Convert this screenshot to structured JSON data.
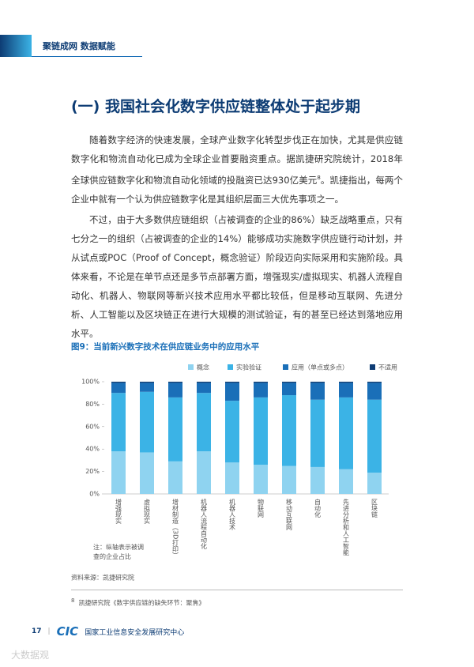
{
  "header": {
    "title": "聚链成网 数据赋能"
  },
  "section_title": "(一) 我国社会化数字供应链整体处于起步期",
  "paragraphs": [
    {
      "before": "随着数字经济的快速发展，全球产业数字化转型步伐正在加快，尤其是供应链数字化和物流自动化已成为全球企业首要融资重点。据凯捷研究院统计，2018年全球供应链数字化和物流自动化领域的投融资已达930亿美元",
      "ref": "8",
      "after": "。凯捷指出，每两个企业中就有一个认为供应链数字化是其组织层面三大优先事项之一。"
    },
    {
      "before": "不过，由于大多数供应链组织（占被调查的企业的86%）缺乏战略重点，只有七分之一的组织（占被调查的企业的14%）能够成功实施数字供应链行动计划，并从试点或POC（Proof of Concept，概念验证）阶段迈向实际采用和实施阶段。具体来看，不论是在单节点还是多节点部署方面，增强现实/虚拟现实、机器人流程自动化、机器人、物联网等新兴技术应用水平都比较低，但是移动互联网、先进分析、人工智能以及区块链正在进行大规模的测试验证，有的甚至已经达到落地应用水平。"
    }
  ],
  "chart_data": {
    "type": "stacked_bar",
    "title": "图9：当前新兴数字技术在供应链业务中的应用水平",
    "categories": [
      "增强现实",
      "虚拟现实",
      "增材制造（3D打印）",
      "机器人流程自动化",
      "机器人技术",
      "物联网",
      "移动互联网",
      "自动化",
      "先进分析和人工智能",
      "区块链"
    ],
    "series": [
      {
        "name": "概念",
        "color": "#8fd3f0",
        "values": [
          38,
          37,
          29,
          38,
          28,
          26,
          25,
          24,
          22,
          19
        ]
      },
      {
        "name": "实验验证",
        "color": "#3bb3e6",
        "values": [
          52,
          54,
          57,
          52,
          55,
          60,
          63,
          60,
          64,
          65
        ]
      },
      {
        "name": "应用（单点或多点）",
        "color": "#1a6fb8",
        "values": [
          9,
          8,
          13,
          9,
          16,
          13,
          11,
          15,
          13,
          15
        ]
      },
      {
        "name": "不适用",
        "color": "#0d3c74",
        "values": [
          1,
          1,
          1,
          1,
          1,
          1,
          1,
          1,
          1,
          1
        ]
      }
    ],
    "ylim": [
      0,
      100
    ],
    "yticks": [
      {
        "value": 0,
        "label": "0%"
      },
      {
        "value": 20,
        "label": "20%"
      },
      {
        "value": 40,
        "label": "40%"
      },
      {
        "value": 60,
        "label": "60%"
      },
      {
        "value": 80,
        "label": "80%"
      },
      {
        "value": 100,
        "label": "100%"
      }
    ],
    "note": "注：纵轴表示被调查的企业占比",
    "source": "资料来源：凯捷研究院"
  },
  "footnote": {
    "number": "8",
    "text": "凯捷研究院《数字供应链的缺失环节：聚焦》"
  },
  "footer": {
    "page": "17",
    "logo": "CIC",
    "org": "国家工业信息安全发展研究中心"
  },
  "watermark": "大数据观"
}
